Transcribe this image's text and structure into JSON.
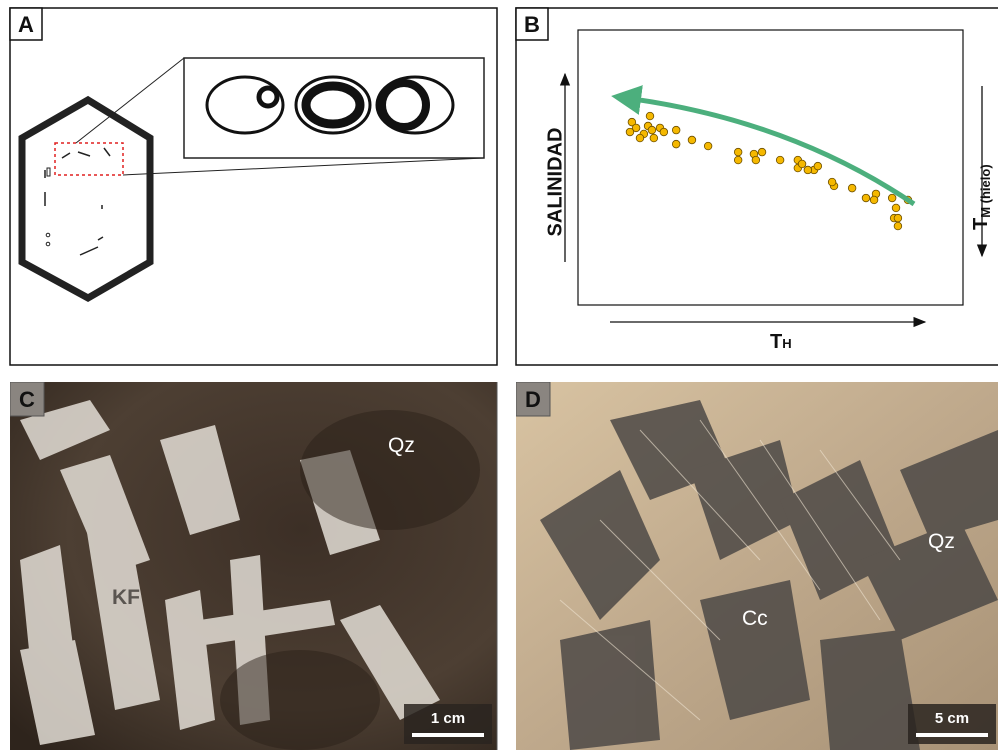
{
  "panel_labels": [
    "A",
    "B",
    "C",
    "D"
  ],
  "chart_data": {
    "type": "scatter",
    "y_label": "SALINIDAD",
    "x_label": {
      "main": "T",
      "sub": "H"
    },
    "y2_label": {
      "main": "T",
      "sub": "M (hielo)"
    },
    "x": [
      14.0,
      15.1,
      13.5,
      18.7,
      18.2,
      19.2,
      17.1,
      21.3,
      22.3,
      25.5,
      16.1,
      19.7,
      29.6,
      25.5,
      33.8,
      41.6,
      41.6,
      45.7,
      46.2,
      47.8,
      52.5,
      57.1,
      57.1,
      58.2,
      61.3,
      59.7,
      62.3,
      66.5,
      66.0,
      71.2,
      74.8,
      77.4,
      76.9,
      81.6,
      82.6,
      85.7,
      82.1,
      83.1,
      83.1
    ],
    "y": [
      66.5,
      64.4,
      62.9,
      68.7,
      65.1,
      63.6,
      62.2,
      64.4,
      62.9,
      63.6,
      60.7,
      60.7,
      60.0,
      58.5,
      57.8,
      55.6,
      52.7,
      54.9,
      52.7,
      55.6,
      52.7,
      52.7,
      49.8,
      51.3,
      49.1,
      49.1,
      50.5,
      43.3,
      44.7,
      42.5,
      38.9,
      40.4,
      38.2,
      38.9,
      35.3,
      38.2,
      31.6,
      28.7,
      31.6
    ],
    "color": "#f5b800",
    "xlim": [
      0,
      100
    ],
    "ylim": [
      0,
      100
    ]
  },
  "photo_c": {
    "labels": [
      "Qz",
      "KF"
    ],
    "scale_bar": "1 cm"
  },
  "photo_d": {
    "labels": [
      "Qz",
      "Cc"
    ],
    "scale_bar": "5 cm"
  }
}
